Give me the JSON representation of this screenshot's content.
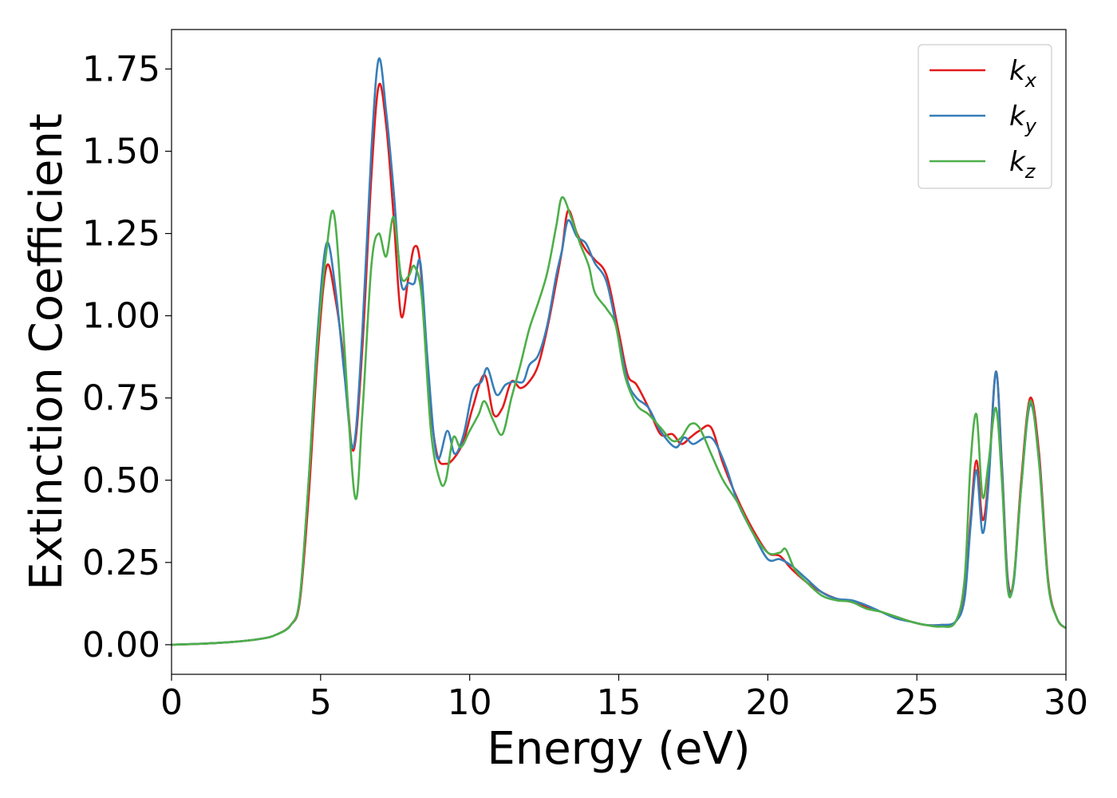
{
  "chart_data": {
    "type": "line",
    "xlabel": "Energy (eV)",
    "ylabel": "Extinction Coefficient",
    "xlim": [
      0,
      30
    ],
    "ylim": [
      -0.09,
      1.87
    ],
    "xticks": [
      0,
      5,
      10,
      15,
      20,
      25,
      30
    ],
    "yticks": [
      0.0,
      0.25,
      0.5,
      0.75,
      1.0,
      1.25,
      1.5,
      1.75
    ],
    "xtick_labels": [
      "0",
      "5",
      "10",
      "15",
      "20",
      "25",
      "30"
    ],
    "ytick_labels": [
      "0.00",
      "0.25",
      "0.50",
      "0.75",
      "1.00",
      "1.25",
      "1.50",
      "1.75"
    ],
    "grid": false,
    "legend_position": "top-right",
    "series": [
      {
        "name": "kx",
        "legend_base": "k",
        "legend_sub": "x",
        "color": "#e41a1c",
        "points": [
          [
            0,
            0.0
          ],
          [
            1,
            0.003
          ],
          [
            2,
            0.008
          ],
          [
            3,
            0.018
          ],
          [
            3.5,
            0.03
          ],
          [
            4,
            0.06
          ],
          [
            4.3,
            0.13
          ],
          [
            4.6,
            0.45
          ],
          [
            4.9,
            0.88
          ],
          [
            5.2,
            1.15
          ],
          [
            5.5,
            1.05
          ],
          [
            5.8,
            0.85
          ],
          [
            6.1,
            0.59
          ],
          [
            6.4,
            0.9
          ],
          [
            6.7,
            1.42
          ],
          [
            6.95,
            1.7
          ],
          [
            7.2,
            1.58
          ],
          [
            7.45,
            1.3
          ],
          [
            7.7,
            1.0
          ],
          [
            7.95,
            1.12
          ],
          [
            8.15,
            1.21
          ],
          [
            8.35,
            1.15
          ],
          [
            8.6,
            0.8
          ],
          [
            8.9,
            0.58
          ],
          [
            9.2,
            0.55
          ],
          [
            9.5,
            0.57
          ],
          [
            9.8,
            0.62
          ],
          [
            10.1,
            0.72
          ],
          [
            10.5,
            0.82
          ],
          [
            10.8,
            0.7
          ],
          [
            11.1,
            0.72
          ],
          [
            11.4,
            0.8
          ],
          [
            11.7,
            0.78
          ],
          [
            12.0,
            0.8
          ],
          [
            12.3,
            0.85
          ],
          [
            12.6,
            0.96
          ],
          [
            12.9,
            1.1
          ],
          [
            13.1,
            1.2
          ],
          [
            13.3,
            1.32
          ],
          [
            13.6,
            1.25
          ],
          [
            13.9,
            1.2
          ],
          [
            14.2,
            1.17
          ],
          [
            14.6,
            1.12
          ],
          [
            15.0,
            0.95
          ],
          [
            15.3,
            0.82
          ],
          [
            15.6,
            0.79
          ],
          [
            16.0,
            0.72
          ],
          [
            16.4,
            0.64
          ],
          [
            16.8,
            0.64
          ],
          [
            17.1,
            0.61
          ],
          [
            17.4,
            0.63
          ],
          [
            17.7,
            0.65
          ],
          [
            18.1,
            0.66
          ],
          [
            18.5,
            0.55
          ],
          [
            19.0,
            0.44
          ],
          [
            19.5,
            0.35
          ],
          [
            20.0,
            0.28
          ],
          [
            20.4,
            0.27
          ],
          [
            20.8,
            0.23
          ],
          [
            21.3,
            0.19
          ],
          [
            21.8,
            0.16
          ],
          [
            22.3,
            0.14
          ],
          [
            22.8,
            0.13
          ],
          [
            23.3,
            0.115
          ],
          [
            23.8,
            0.1
          ],
          [
            24.3,
            0.085
          ],
          [
            24.8,
            0.07
          ],
          [
            25.3,
            0.06
          ],
          [
            25.8,
            0.06
          ],
          [
            26.3,
            0.07
          ],
          [
            26.6,
            0.15
          ],
          [
            26.8,
            0.38
          ],
          [
            27.0,
            0.56
          ],
          [
            27.2,
            0.38
          ],
          [
            27.4,
            0.5
          ],
          [
            27.65,
            0.83
          ],
          [
            27.85,
            0.55
          ],
          [
            28.05,
            0.2
          ],
          [
            28.25,
            0.2
          ],
          [
            28.5,
            0.5
          ],
          [
            28.8,
            0.75
          ],
          [
            29.1,
            0.58
          ],
          [
            29.4,
            0.2
          ],
          [
            29.7,
            0.08
          ],
          [
            30.0,
            0.05
          ]
        ]
      },
      {
        "name": "ky",
        "legend_base": "k",
        "legend_sub": "y",
        "color": "#377eb8",
        "points": [
          [
            0,
            0.0
          ],
          [
            1,
            0.003
          ],
          [
            2,
            0.008
          ],
          [
            3,
            0.018
          ],
          [
            3.5,
            0.03
          ],
          [
            4,
            0.06
          ],
          [
            4.3,
            0.14
          ],
          [
            4.6,
            0.5
          ],
          [
            4.9,
            0.95
          ],
          [
            5.2,
            1.22
          ],
          [
            5.5,
            1.08
          ],
          [
            5.8,
            0.82
          ],
          [
            6.1,
            0.6
          ],
          [
            6.4,
            0.95
          ],
          [
            6.7,
            1.5
          ],
          [
            6.95,
            1.78
          ],
          [
            7.2,
            1.62
          ],
          [
            7.45,
            1.38
          ],
          [
            7.7,
            1.1
          ],
          [
            7.95,
            1.1
          ],
          [
            8.15,
            1.1
          ],
          [
            8.35,
            1.16
          ],
          [
            8.6,
            0.85
          ],
          [
            8.9,
            0.57
          ],
          [
            9.25,
            0.65
          ],
          [
            9.5,
            0.58
          ],
          [
            9.8,
            0.64
          ],
          [
            10.1,
            0.77
          ],
          [
            10.4,
            0.8
          ],
          [
            10.6,
            0.84
          ],
          [
            10.9,
            0.76
          ],
          [
            11.2,
            0.79
          ],
          [
            11.5,
            0.8
          ],
          [
            11.8,
            0.8
          ],
          [
            12.0,
            0.85
          ],
          [
            12.3,
            0.88
          ],
          [
            12.6,
            0.97
          ],
          [
            12.9,
            1.12
          ],
          [
            13.1,
            1.2
          ],
          [
            13.3,
            1.29
          ],
          [
            13.6,
            1.24
          ],
          [
            13.9,
            1.22
          ],
          [
            14.2,
            1.16
          ],
          [
            14.6,
            1.1
          ],
          [
            15.0,
            0.93
          ],
          [
            15.3,
            0.8
          ],
          [
            15.6,
            0.75
          ],
          [
            16.0,
            0.72
          ],
          [
            16.4,
            0.65
          ],
          [
            16.9,
            0.6
          ],
          [
            17.2,
            0.63
          ],
          [
            17.5,
            0.61
          ],
          [
            17.9,
            0.63
          ],
          [
            18.2,
            0.62
          ],
          [
            18.6,
            0.54
          ],
          [
            19.0,
            0.43
          ],
          [
            19.5,
            0.34
          ],
          [
            20.0,
            0.26
          ],
          [
            20.4,
            0.26
          ],
          [
            20.8,
            0.24
          ],
          [
            21.3,
            0.2
          ],
          [
            21.8,
            0.16
          ],
          [
            22.3,
            0.14
          ],
          [
            22.8,
            0.135
          ],
          [
            23.3,
            0.12
          ],
          [
            23.8,
            0.1
          ],
          [
            24.3,
            0.08
          ],
          [
            24.8,
            0.07
          ],
          [
            25.3,
            0.06
          ],
          [
            25.8,
            0.06
          ],
          [
            26.3,
            0.07
          ],
          [
            26.6,
            0.14
          ],
          [
            26.8,
            0.36
          ],
          [
            27.0,
            0.53
          ],
          [
            27.2,
            0.34
          ],
          [
            27.4,
            0.48
          ],
          [
            27.65,
            0.83
          ],
          [
            27.85,
            0.54
          ],
          [
            28.05,
            0.19
          ],
          [
            28.25,
            0.19
          ],
          [
            28.5,
            0.48
          ],
          [
            28.8,
            0.73
          ],
          [
            29.1,
            0.56
          ],
          [
            29.4,
            0.19
          ],
          [
            29.7,
            0.08
          ],
          [
            30.0,
            0.05
          ]
        ]
      },
      {
        "name": "kz",
        "legend_base": "k",
        "legend_sub": "z",
        "color": "#4daf4a",
        "points": [
          [
            0,
            0.0
          ],
          [
            1,
            0.003
          ],
          [
            2,
            0.008
          ],
          [
            3,
            0.018
          ],
          [
            3.5,
            0.03
          ],
          [
            4,
            0.06
          ],
          [
            4.3,
            0.14
          ],
          [
            4.6,
            0.5
          ],
          [
            4.9,
            0.92
          ],
          [
            5.2,
            1.2
          ],
          [
            5.45,
            1.31
          ],
          [
            5.75,
            0.97
          ],
          [
            6.15,
            0.45
          ],
          [
            6.4,
            0.7
          ],
          [
            6.7,
            1.15
          ],
          [
            6.95,
            1.25
          ],
          [
            7.2,
            1.18
          ],
          [
            7.45,
            1.3
          ],
          [
            7.7,
            1.12
          ],
          [
            7.95,
            1.12
          ],
          [
            8.15,
            1.15
          ],
          [
            8.4,
            1.05
          ],
          [
            8.7,
            0.65
          ],
          [
            9.0,
            0.5
          ],
          [
            9.2,
            0.5
          ],
          [
            9.45,
            0.63
          ],
          [
            9.7,
            0.6
          ],
          [
            10.0,
            0.65
          ],
          [
            10.3,
            0.7
          ],
          [
            10.5,
            0.74
          ],
          [
            10.8,
            0.68
          ],
          [
            11.1,
            0.64
          ],
          [
            11.4,
            0.75
          ],
          [
            11.7,
            0.85
          ],
          [
            12.0,
            0.96
          ],
          [
            12.3,
            1.04
          ],
          [
            12.6,
            1.13
          ],
          [
            12.9,
            1.27
          ],
          [
            13.1,
            1.36
          ],
          [
            13.4,
            1.3
          ],
          [
            13.7,
            1.22
          ],
          [
            14.0,
            1.15
          ],
          [
            14.2,
            1.07
          ],
          [
            14.6,
            1.02
          ],
          [
            14.9,
            0.97
          ],
          [
            15.2,
            0.82
          ],
          [
            15.6,
            0.73
          ],
          [
            16.0,
            0.7
          ],
          [
            16.4,
            0.66
          ],
          [
            16.8,
            0.62
          ],
          [
            17.1,
            0.63
          ],
          [
            17.4,
            0.67
          ],
          [
            17.7,
            0.66
          ],
          [
            18.1,
            0.58
          ],
          [
            18.5,
            0.5
          ],
          [
            19.0,
            0.43
          ],
          [
            19.5,
            0.34
          ],
          [
            20.0,
            0.28
          ],
          [
            20.4,
            0.28
          ],
          [
            20.6,
            0.29
          ],
          [
            20.9,
            0.23
          ],
          [
            21.3,
            0.19
          ],
          [
            21.8,
            0.15
          ],
          [
            22.3,
            0.135
          ],
          [
            22.8,
            0.13
          ],
          [
            23.3,
            0.11
          ],
          [
            23.8,
            0.1
          ],
          [
            24.3,
            0.085
          ],
          [
            24.8,
            0.07
          ],
          [
            25.3,
            0.06
          ],
          [
            25.8,
            0.055
          ],
          [
            26.3,
            0.07
          ],
          [
            26.6,
            0.2
          ],
          [
            26.8,
            0.55
          ],
          [
            27.0,
            0.7
          ],
          [
            27.2,
            0.45
          ],
          [
            27.4,
            0.55
          ],
          [
            27.65,
            0.72
          ],
          [
            27.85,
            0.5
          ],
          [
            28.05,
            0.17
          ],
          [
            28.25,
            0.2
          ],
          [
            28.5,
            0.48
          ],
          [
            28.8,
            0.74
          ],
          [
            29.1,
            0.55
          ],
          [
            29.4,
            0.19
          ],
          [
            29.7,
            0.08
          ],
          [
            30.0,
            0.05
          ]
        ]
      }
    ]
  }
}
